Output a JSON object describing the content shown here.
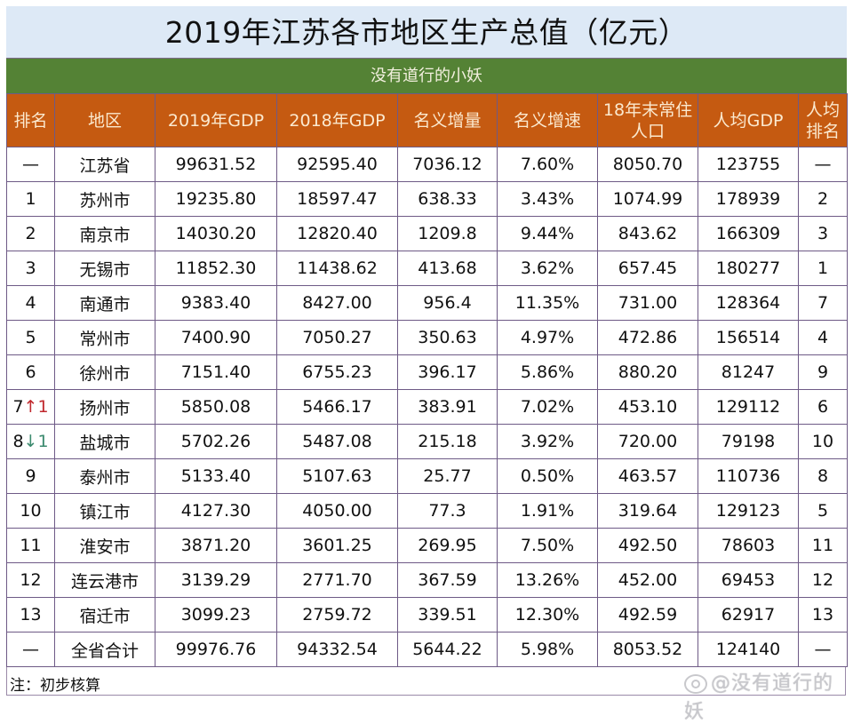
{
  "title": "2019年江苏各市地区生产总值（亿元）",
  "subtitle": "没有道行的小妖",
  "colors": {
    "title_bg": "#dde9f6",
    "subtitle_bg": "#548235",
    "header_bg": "#c55a11",
    "header_text": "#fbe9cf",
    "border": "#6e5a86",
    "brown_value": "#6b4e2e",
    "rank_up": "#c0282d",
    "rank_down": "#3b8a6e"
  },
  "headers": [
    "排名",
    "地区",
    "2019年GDP",
    "2018年GDP",
    "名义增量",
    "名义增速",
    "18年末常住人口",
    "人均GDP",
    "人均排名"
  ],
  "header_lines": {
    "population": [
      "18年末常住",
      "人口"
    ],
    "per_capita_rank": [
      "人均",
      "排名"
    ]
  },
  "rows": [
    {
      "rank": "—",
      "rank_change": "",
      "region": "江苏省",
      "gdp2019": "99631.52",
      "gdp2018": "92595.40",
      "increase": "7036.12",
      "growth": "7.60%",
      "population": "8050.70",
      "per_capita": "123755",
      "per_capita_rank": "—"
    },
    {
      "rank": "1",
      "rank_change": "",
      "region": "苏州市",
      "gdp2019": "19235.80",
      "gdp2018": "18597.47",
      "increase": "638.33",
      "growth": "3.43%",
      "population": "1074.99",
      "per_capita": "178939",
      "per_capita_rank": "2"
    },
    {
      "rank": "2",
      "rank_change": "",
      "region": "南京市",
      "gdp2019": "14030.20",
      "gdp2018": "12820.40",
      "increase": "1209.8",
      "growth": "9.44%",
      "population": "843.62",
      "per_capita": "166309",
      "per_capita_rank": "3"
    },
    {
      "rank": "3",
      "rank_change": "",
      "region": "无锡市",
      "gdp2019": "11852.30",
      "gdp2018": "11438.62",
      "increase": "413.68",
      "growth": "3.62%",
      "population": "657.45",
      "per_capita": "180277",
      "per_capita_rank": "1"
    },
    {
      "rank": "4",
      "rank_change": "",
      "region": "南通市",
      "gdp2019": "9383.40",
      "gdp2018": "8427.00",
      "increase": "956.4",
      "growth": "11.35%",
      "population": "731.00",
      "per_capita": "128364",
      "per_capita_rank": "7"
    },
    {
      "rank": "5",
      "rank_change": "",
      "region": "常州市",
      "gdp2019": "7400.90",
      "gdp2018": "7050.27",
      "increase": "350.63",
      "growth": "4.97%",
      "population": "472.86",
      "per_capita": "156514",
      "per_capita_rank": "4"
    },
    {
      "rank": "6",
      "rank_change": "",
      "region": "徐州市",
      "gdp2019": "7151.40",
      "gdp2018": "6755.23",
      "increase": "396.17",
      "growth": "5.86%",
      "population": "880.20",
      "per_capita": "81247",
      "per_capita_rank": "9"
    },
    {
      "rank": "7",
      "rank_change": "↑1",
      "rank_dir": "up",
      "region": "扬州市",
      "gdp2019": "5850.08",
      "gdp2018": "5466.17",
      "increase": "383.91",
      "growth": "7.02%",
      "population": "453.10",
      "per_capita": "129112",
      "per_capita_rank": "6"
    },
    {
      "rank": "8",
      "rank_change": "↓1",
      "rank_dir": "down",
      "region": "盐城市",
      "gdp2019": "5702.26",
      "gdp2018": "5487.08",
      "increase": "215.18",
      "growth": "3.92%",
      "population": "720.00",
      "per_capita": "79198",
      "per_capita_rank": "10"
    },
    {
      "rank": "9",
      "rank_change": "",
      "region": "泰州市",
      "gdp2019": "5133.40",
      "gdp2018": "5107.63",
      "increase": "25.77",
      "growth": "0.50%",
      "population": "463.57",
      "per_capita": "110736",
      "per_capita_rank": "8"
    },
    {
      "rank": "10",
      "rank_change": "",
      "region": "镇江市",
      "gdp2019": "4127.30",
      "gdp2018": "4050.00",
      "increase": "77.3",
      "growth": "1.91%",
      "population": "319.64",
      "per_capita": "129123",
      "per_capita_rank": "5"
    },
    {
      "rank": "11",
      "rank_change": "",
      "region": "淮安市",
      "gdp2019": "3871.20",
      "gdp2018": "3601.25",
      "increase": "269.95",
      "growth": "7.50%",
      "population": "492.50",
      "per_capita": "78603",
      "per_capita_rank": "11"
    },
    {
      "rank": "12",
      "rank_change": "",
      "region": "连云港市",
      "gdp2019": "3139.29",
      "gdp2018": "2771.70",
      "increase": "367.59",
      "growth": "13.26%",
      "population": "452.00",
      "per_capita": "69453",
      "per_capita_rank": "12"
    },
    {
      "rank": "13",
      "rank_change": "",
      "region": "宿迁市",
      "gdp2019": "3099.23",
      "gdp2018": "2759.72",
      "increase": "339.51",
      "growth": "12.30%",
      "population": "492.59",
      "per_capita": "62917",
      "per_capita_rank": "13"
    },
    {
      "rank": "—",
      "rank_change": "",
      "region": "全省合计",
      "gdp2019": "99976.76",
      "gdp2018": "94332.54",
      "gdp2018_plain": true,
      "increase": "5644.22",
      "growth": "5.98%",
      "population": "8053.52",
      "per_capita": "124140",
      "per_capita_rank": "—"
    }
  ],
  "note": "注：初步核算",
  "watermark": "@没有道行的妖",
  "watermark_icon": "weibo-icon"
}
